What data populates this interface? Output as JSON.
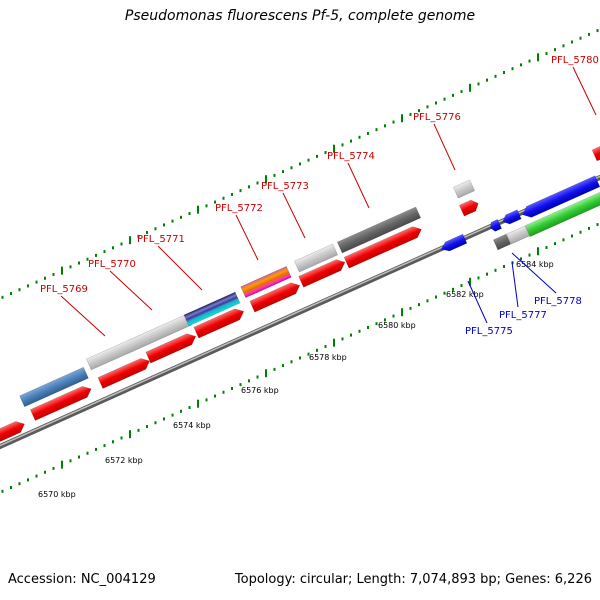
{
  "title": "Pseudomonas fluorescens Pf-5, complete genome",
  "footer": {
    "accession": "Accession: NC_004129",
    "summary": "Topology: circular; Length: 7,074,893 bp; Genes: 6,226"
  },
  "colors": {
    "forward_label": "#cc0000",
    "reverse_label": "#0000cc",
    "axis": "#888888",
    "tick": "#008000"
  },
  "scale_ticks": [
    {
      "label": "6570 kbp",
      "kbp": 6570
    },
    {
      "label": "6572 kbp",
      "kbp": 6572
    },
    {
      "label": "6574 kbp",
      "kbp": 6574
    },
    {
      "label": "6576 kbp",
      "kbp": 6576
    },
    {
      "label": "6578 kbp",
      "kbp": 6578
    },
    {
      "label": "6580 kbp",
      "kbp": 6580
    },
    {
      "label": "6582 kbp",
      "kbp": 6582
    },
    {
      "label": "6584 kbp",
      "kbp": 6584
    }
  ],
  "gene_labels": [
    {
      "text": "PFL_5769",
      "strand": "forward"
    },
    {
      "text": "PFL_5770",
      "strand": "forward"
    },
    {
      "text": "PFL_5771",
      "strand": "forward"
    },
    {
      "text": "PFL_5772",
      "strand": "forward"
    },
    {
      "text": "PFL_5773",
      "strand": "forward"
    },
    {
      "text": "PFL_5774",
      "strand": "forward"
    },
    {
      "text": "PFL_5776",
      "strand": "forward"
    },
    {
      "text": "PFL_5780",
      "strand": "forward"
    },
    {
      "text": "PFL_5775",
      "strand": "reverse"
    },
    {
      "text": "PFL_5777",
      "strand": "reverse"
    },
    {
      "text": "PFL_5778",
      "strand": "reverse"
    }
  ]
}
